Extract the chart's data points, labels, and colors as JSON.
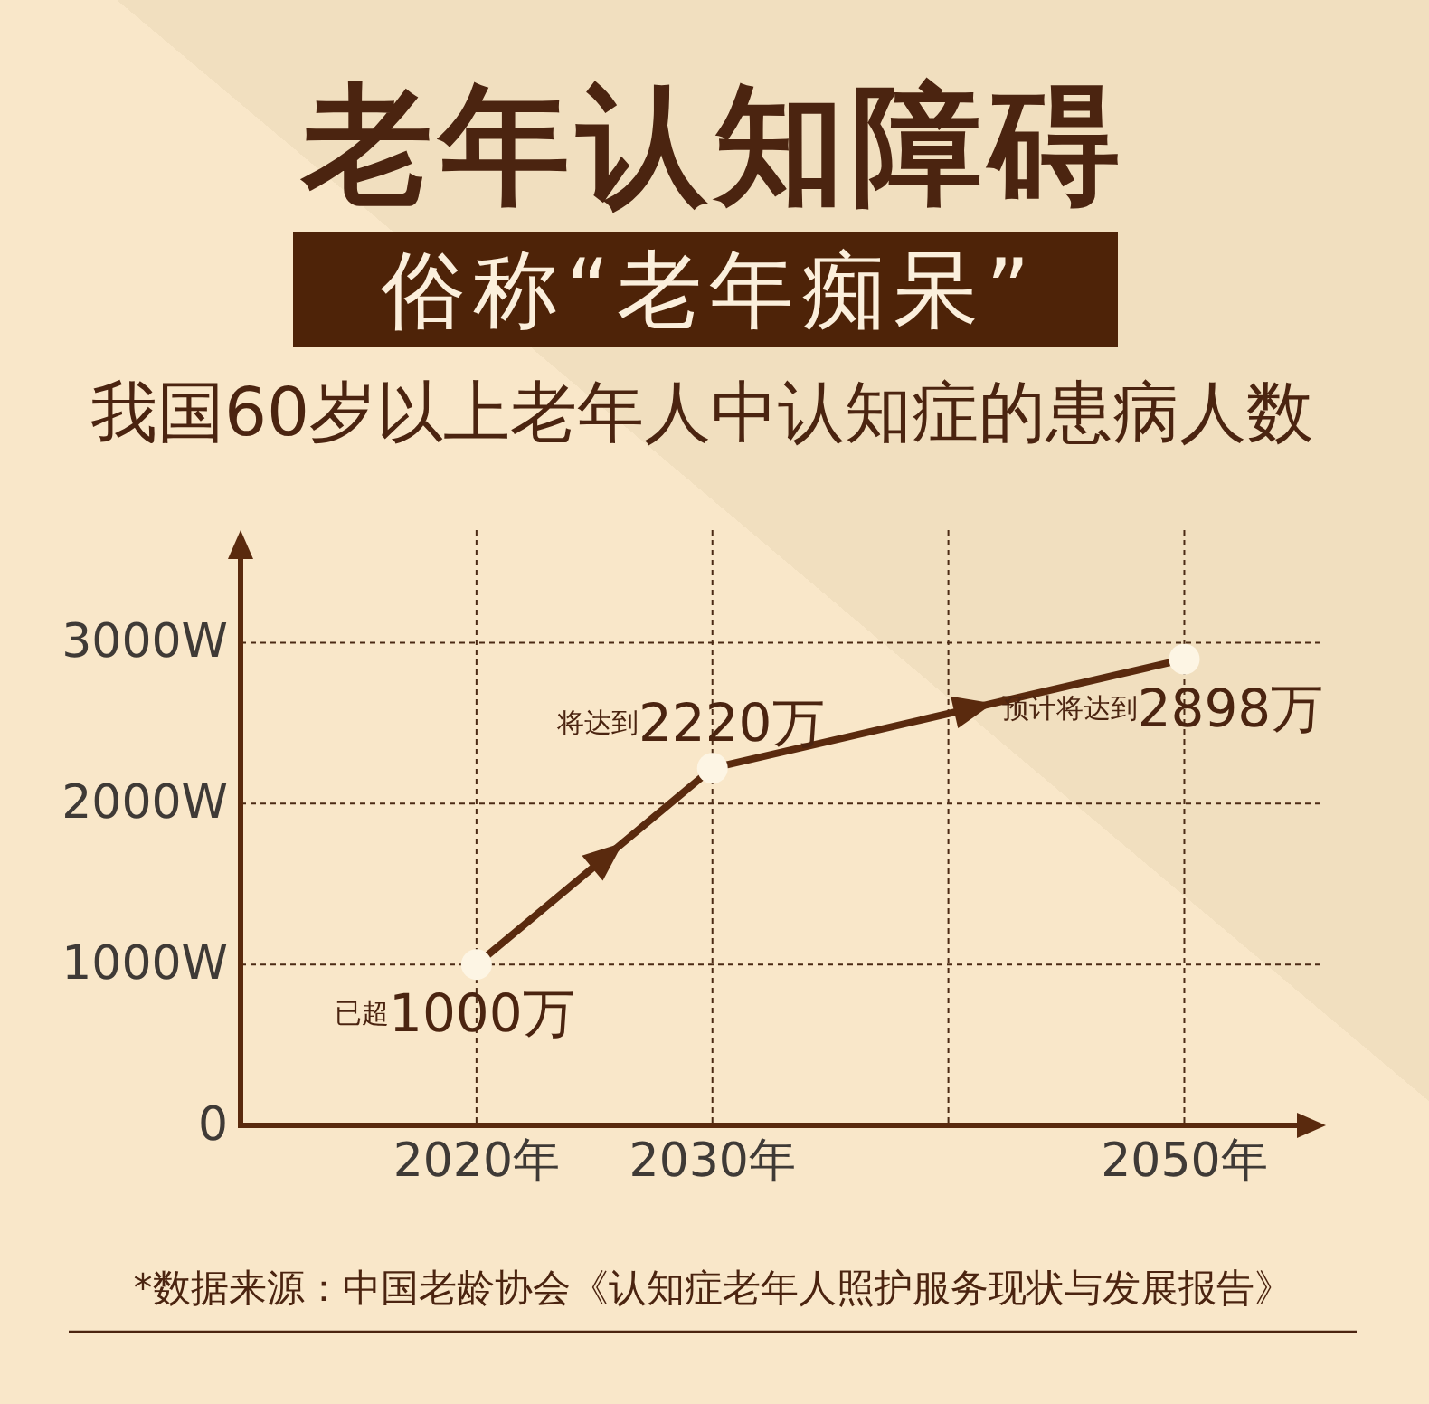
{
  "chart_data": {
    "type": "line",
    "title": "老年认知障碍",
    "subtitle": "俗称“老年痴呆”",
    "annotations": [
      "我国60岁以上老年人中认知症的患病人数",
      "*数据来源：中国老龄协会《认知症老年人照护服务现状与发展报告》"
    ],
    "x": [
      2020,
      2030,
      2050
    ],
    "values": [
      1000,
      2220,
      2898
    ],
    "value_labels": [
      "已超1000万",
      "将达到2220万",
      "预计将达到2898万"
    ],
    "color": "#5a2a0e",
    "xlim": [
      2010,
      2056
    ],
    "ylim": [
      0,
      3700
    ],
    "xticks": [
      {
        "value": 2020,
        "label": "2020年"
      },
      {
        "value": 2030,
        "label": "2030年"
      },
      {
        "value": 2040,
        "label": null
      },
      {
        "value": 2050,
        "label": "2050年"
      }
    ],
    "yticks": [
      0,
      {
        "value": 1000,
        "label": "1000W"
      },
      {
        "value": 2000,
        "label": "2000W"
      },
      {
        "value": 3000,
        "label": "3000W"
      }
    ],
    "grid": true,
    "marker": "circle"
  }
}
